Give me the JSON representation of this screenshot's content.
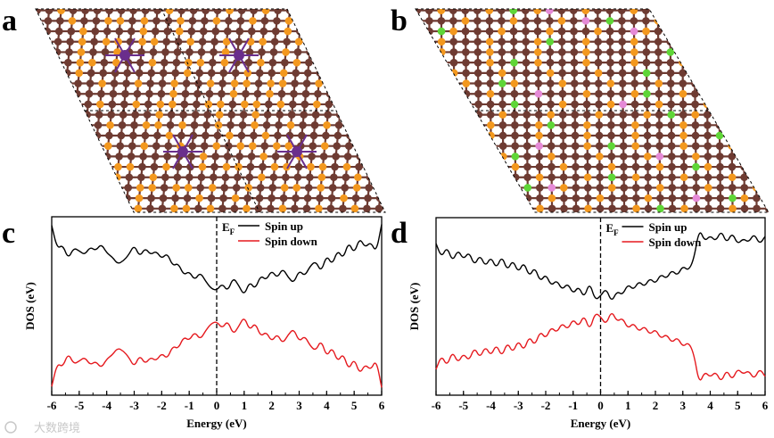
{
  "panels": {
    "a": {
      "label": "a"
    },
    "b": {
      "label": "b"
    },
    "c": {
      "label": "c"
    },
    "d": {
      "label": "d"
    }
  },
  "watermark": "大数跨境",
  "colors": {
    "carbon": "#6e3b32",
    "orange": "#f3981e",
    "purple": "#6a2e8c",
    "green": "#5fd637",
    "pink": "#e58ad7",
    "spin_up": "#000000",
    "spin_down": "#e5191e"
  },
  "chart_data": [
    {
      "panel": "c",
      "type": "line",
      "xlabel": "Energy (eV)",
      "ylabel": "DOS (eV)",
      "xlim": [
        -6,
        6
      ],
      "xticks": [
        -6,
        -5,
        -4,
        -3,
        -2,
        -1,
        0,
        1,
        2,
        3,
        4,
        5,
        6
      ],
      "fermi_label": "E",
      "fermi_sub": "F",
      "fermi_x": 0,
      "grid": false,
      "legend_position": "top-center",
      "series": [
        {
          "name": "Spin up",
          "color": "#000000",
          "x": [
            -6,
            -5.8,
            -5.6,
            -5.4,
            -5.2,
            -5,
            -4.8,
            -4.6,
            -4.4,
            -4.2,
            -4,
            -3.8,
            -3.6,
            -3.4,
            -3.2,
            -3,
            -2.8,
            -2.6,
            -2.4,
            -2.2,
            -2,
            -1.8,
            -1.6,
            -1.4,
            -1.2,
            -1,
            -0.8,
            -0.6,
            -0.4,
            -0.2,
            0,
            0.2,
            0.4,
            0.6,
            0.8,
            1,
            1.2,
            1.4,
            1.6,
            1.8,
            2,
            2.2,
            2.4,
            2.6,
            2.8,
            3,
            3.2,
            3.4,
            3.6,
            3.8,
            4,
            4.2,
            4.4,
            4.6,
            4.8,
            5,
            5.2,
            5.4,
            5.6,
            5.8,
            6
          ],
          "y": [
            0.95,
            0.72,
            0.76,
            0.62,
            0.73,
            0.7,
            0.66,
            0.74,
            0.7,
            0.77,
            0.68,
            0.64,
            0.57,
            0.6,
            0.66,
            0.76,
            0.64,
            0.73,
            0.66,
            0.7,
            0.62,
            0.68,
            0.55,
            0.58,
            0.46,
            0.5,
            0.41,
            0.49,
            0.4,
            0.33,
            0.31,
            0.38,
            0.3,
            0.44,
            0.36,
            0.26,
            0.4,
            0.32,
            0.46,
            0.41,
            0.51,
            0.43,
            0.53,
            0.44,
            0.38,
            0.51,
            0.45,
            0.55,
            0.6,
            0.49,
            0.66,
            0.56,
            0.71,
            0.62,
            0.79,
            0.67,
            0.83,
            0.73,
            0.79,
            0.68,
            0.96
          ]
        },
        {
          "name": "Spin down",
          "color": "#e5191e",
          "x": [
            -6,
            -5.8,
            -5.6,
            -5.4,
            -5.2,
            -5,
            -4.8,
            -4.6,
            -4.4,
            -4.2,
            -4,
            -3.8,
            -3.6,
            -3.4,
            -3.2,
            -3,
            -2.8,
            -2.6,
            -2.4,
            -2.2,
            -2,
            -1.8,
            -1.6,
            -1.4,
            -1.2,
            -1,
            -0.8,
            -0.6,
            -0.4,
            -0.2,
            0,
            0.2,
            0.4,
            0.6,
            0.8,
            1,
            1.2,
            1.4,
            1.6,
            1.8,
            2,
            2.2,
            2.4,
            2.6,
            2.8,
            3,
            3.2,
            3.4,
            3.6,
            3.8,
            4,
            4.2,
            4.4,
            4.6,
            4.8,
            5,
            5.2,
            5.4,
            5.6,
            5.8,
            6
          ],
          "y": [
            -0.95,
            -0.72,
            -0.76,
            -0.62,
            -0.73,
            -0.7,
            -0.66,
            -0.74,
            -0.7,
            -0.77,
            -0.68,
            -0.64,
            -0.57,
            -0.6,
            -0.66,
            -0.76,
            -0.64,
            -0.73,
            -0.66,
            -0.7,
            -0.62,
            -0.68,
            -0.55,
            -0.58,
            -0.46,
            -0.5,
            -0.41,
            -0.49,
            -0.4,
            -0.33,
            -0.31,
            -0.38,
            -0.3,
            -0.44,
            -0.36,
            -0.26,
            -0.4,
            -0.32,
            -0.46,
            -0.41,
            -0.51,
            -0.43,
            -0.53,
            -0.44,
            -0.38,
            -0.51,
            -0.45,
            -0.55,
            -0.6,
            -0.49,
            -0.66,
            -0.56,
            -0.71,
            -0.62,
            -0.79,
            -0.67,
            -0.83,
            -0.73,
            -0.79,
            -0.68,
            -0.96
          ]
        }
      ]
    },
    {
      "panel": "d",
      "type": "line",
      "xlabel": "Energy (eV)",
      "ylabel": "DOS (eV)",
      "xlim": [
        -6,
        6
      ],
      "xticks": [
        -6,
        -5,
        -4,
        -3,
        -2,
        -1,
        0,
        1,
        2,
        3,
        4,
        5,
        6
      ],
      "fermi_label": "E",
      "fermi_sub": "F",
      "fermi_x": 0,
      "grid": false,
      "legend_position": "top-center",
      "series": [
        {
          "name": "Spin up",
          "color": "#000000",
          "x": [
            -6,
            -5.8,
            -5.6,
            -5.4,
            -5.2,
            -5,
            -4.8,
            -4.6,
            -4.4,
            -4.2,
            -4,
            -3.8,
            -3.6,
            -3.4,
            -3.2,
            -3,
            -2.8,
            -2.6,
            -2.4,
            -2.2,
            -2,
            -1.8,
            -1.6,
            -1.4,
            -1.2,
            -1,
            -0.8,
            -0.6,
            -0.4,
            -0.2,
            0,
            0.2,
            0.4,
            0.6,
            0.8,
            1,
            1.2,
            1.4,
            1.6,
            1.8,
            2,
            2.2,
            2.4,
            2.6,
            2.8,
            3,
            3.2,
            3.4,
            3.6,
            3.8,
            4,
            4.2,
            4.4,
            4.6,
            4.8,
            5,
            5.2,
            5.4,
            5.6,
            5.8,
            6
          ],
          "y": [
            0.78,
            0.64,
            0.75,
            0.6,
            0.72,
            0.62,
            0.7,
            0.56,
            0.67,
            0.55,
            0.65,
            0.53,
            0.66,
            0.51,
            0.62,
            0.49,
            0.6,
            0.45,
            0.55,
            0.4,
            0.48,
            0.36,
            0.42,
            0.32,
            0.39,
            0.28,
            0.36,
            0.24,
            0.4,
            0.22,
            0.26,
            0.34,
            0.2,
            0.31,
            0.27,
            0.38,
            0.32,
            0.41,
            0.35,
            0.44,
            0.38,
            0.48,
            0.43,
            0.52,
            0.46,
            0.56,
            0.51,
            0.62,
            0.93,
            0.8,
            0.86,
            0.8,
            0.91,
            0.78,
            0.89,
            0.77,
            0.83,
            0.79,
            0.88,
            0.77,
            0.85
          ]
        },
        {
          "name": "Spin down",
          "color": "#e5191e",
          "x": [
            -6,
            -5.8,
            -5.6,
            -5.4,
            -5.2,
            -5,
            -4.8,
            -4.6,
            -4.4,
            -4.2,
            -4,
            -3.8,
            -3.6,
            -3.4,
            -3.2,
            -3,
            -2.8,
            -2.6,
            -2.4,
            -2.2,
            -2,
            -1.8,
            -1.6,
            -1.4,
            -1.2,
            -1,
            -0.8,
            -0.6,
            -0.4,
            -0.2,
            0,
            0.2,
            0.4,
            0.6,
            0.8,
            1,
            1.2,
            1.4,
            1.6,
            1.8,
            2,
            2.2,
            2.4,
            2.6,
            2.8,
            3,
            3.2,
            3.4,
            3.6,
            3.8,
            4,
            4.2,
            4.4,
            4.6,
            4.8,
            5,
            5.2,
            5.4,
            5.6,
            5.8,
            6
          ],
          "y": [
            -0.78,
            -0.64,
            -0.75,
            -0.6,
            -0.72,
            -0.62,
            -0.7,
            -0.56,
            -0.67,
            -0.55,
            -0.65,
            -0.53,
            -0.66,
            -0.51,
            -0.62,
            -0.49,
            -0.6,
            -0.45,
            -0.55,
            -0.4,
            -0.48,
            -0.36,
            -0.42,
            -0.32,
            -0.39,
            -0.28,
            -0.36,
            -0.24,
            -0.4,
            -0.22,
            -0.26,
            -0.34,
            -0.2,
            -0.31,
            -0.27,
            -0.38,
            -0.32,
            -0.41,
            -0.35,
            -0.44,
            -0.38,
            -0.48,
            -0.43,
            -0.52,
            -0.46,
            -0.56,
            -0.51,
            -0.62,
            -0.93,
            -0.8,
            -0.86,
            -0.8,
            -0.91,
            -0.78,
            -0.89,
            -0.77,
            -0.83,
            -0.79,
            -0.88,
            -0.77,
            -0.85
          ]
        }
      ]
    }
  ]
}
